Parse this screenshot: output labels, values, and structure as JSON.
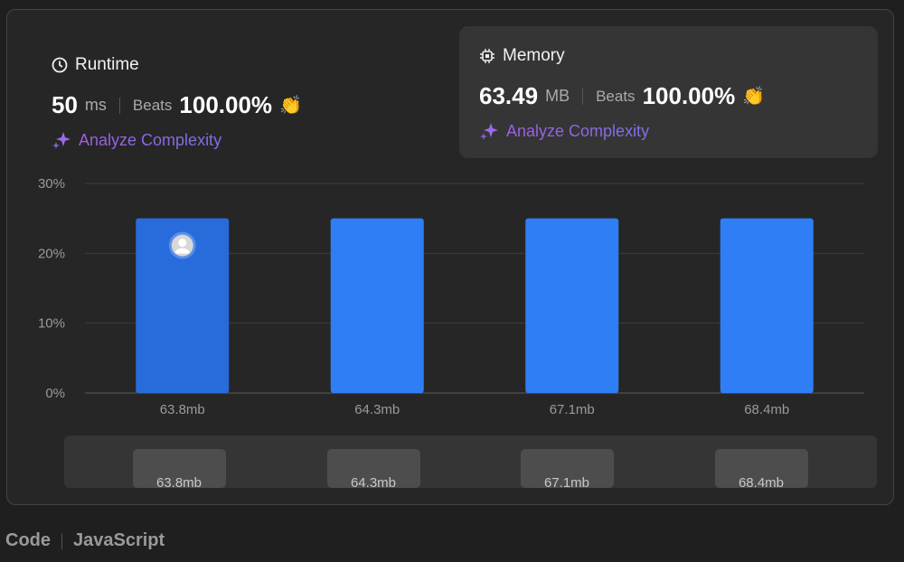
{
  "runtime": {
    "title": "Runtime",
    "value": "50",
    "unit": "ms",
    "beats_label": "Beats",
    "beats": "100.00%",
    "analyze": "Analyze Complexity"
  },
  "memory": {
    "title": "Memory",
    "value": "63.49",
    "unit": "MB",
    "beats_label": "Beats",
    "beats": "100.00%",
    "analyze": "Analyze Complexity"
  },
  "colors": {
    "bar": "#2f7ef5",
    "bar_selected": "#286bdb",
    "navigator_bar": "#4d4d4d",
    "beats_icon": "#3ca43a"
  },
  "chart_data": {
    "type": "bar",
    "categories": [
      "63.8mb",
      "64.3mb",
      "67.1mb",
      "68.4mb"
    ],
    "values": [
      25,
      25,
      25,
      25
    ],
    "ylim": [
      0,
      30
    ],
    "yticks": [
      "0%",
      "10%",
      "20%",
      "30%"
    ],
    "ytick_values": [
      0,
      10,
      20,
      30
    ],
    "selected_index": 0,
    "grid": true,
    "navigator_labels": [
      "63.8mb",
      "64.3mb",
      "67.1mb",
      "68.4mb"
    ]
  },
  "footer": {
    "code_label": "Code",
    "language": "JavaScript"
  }
}
